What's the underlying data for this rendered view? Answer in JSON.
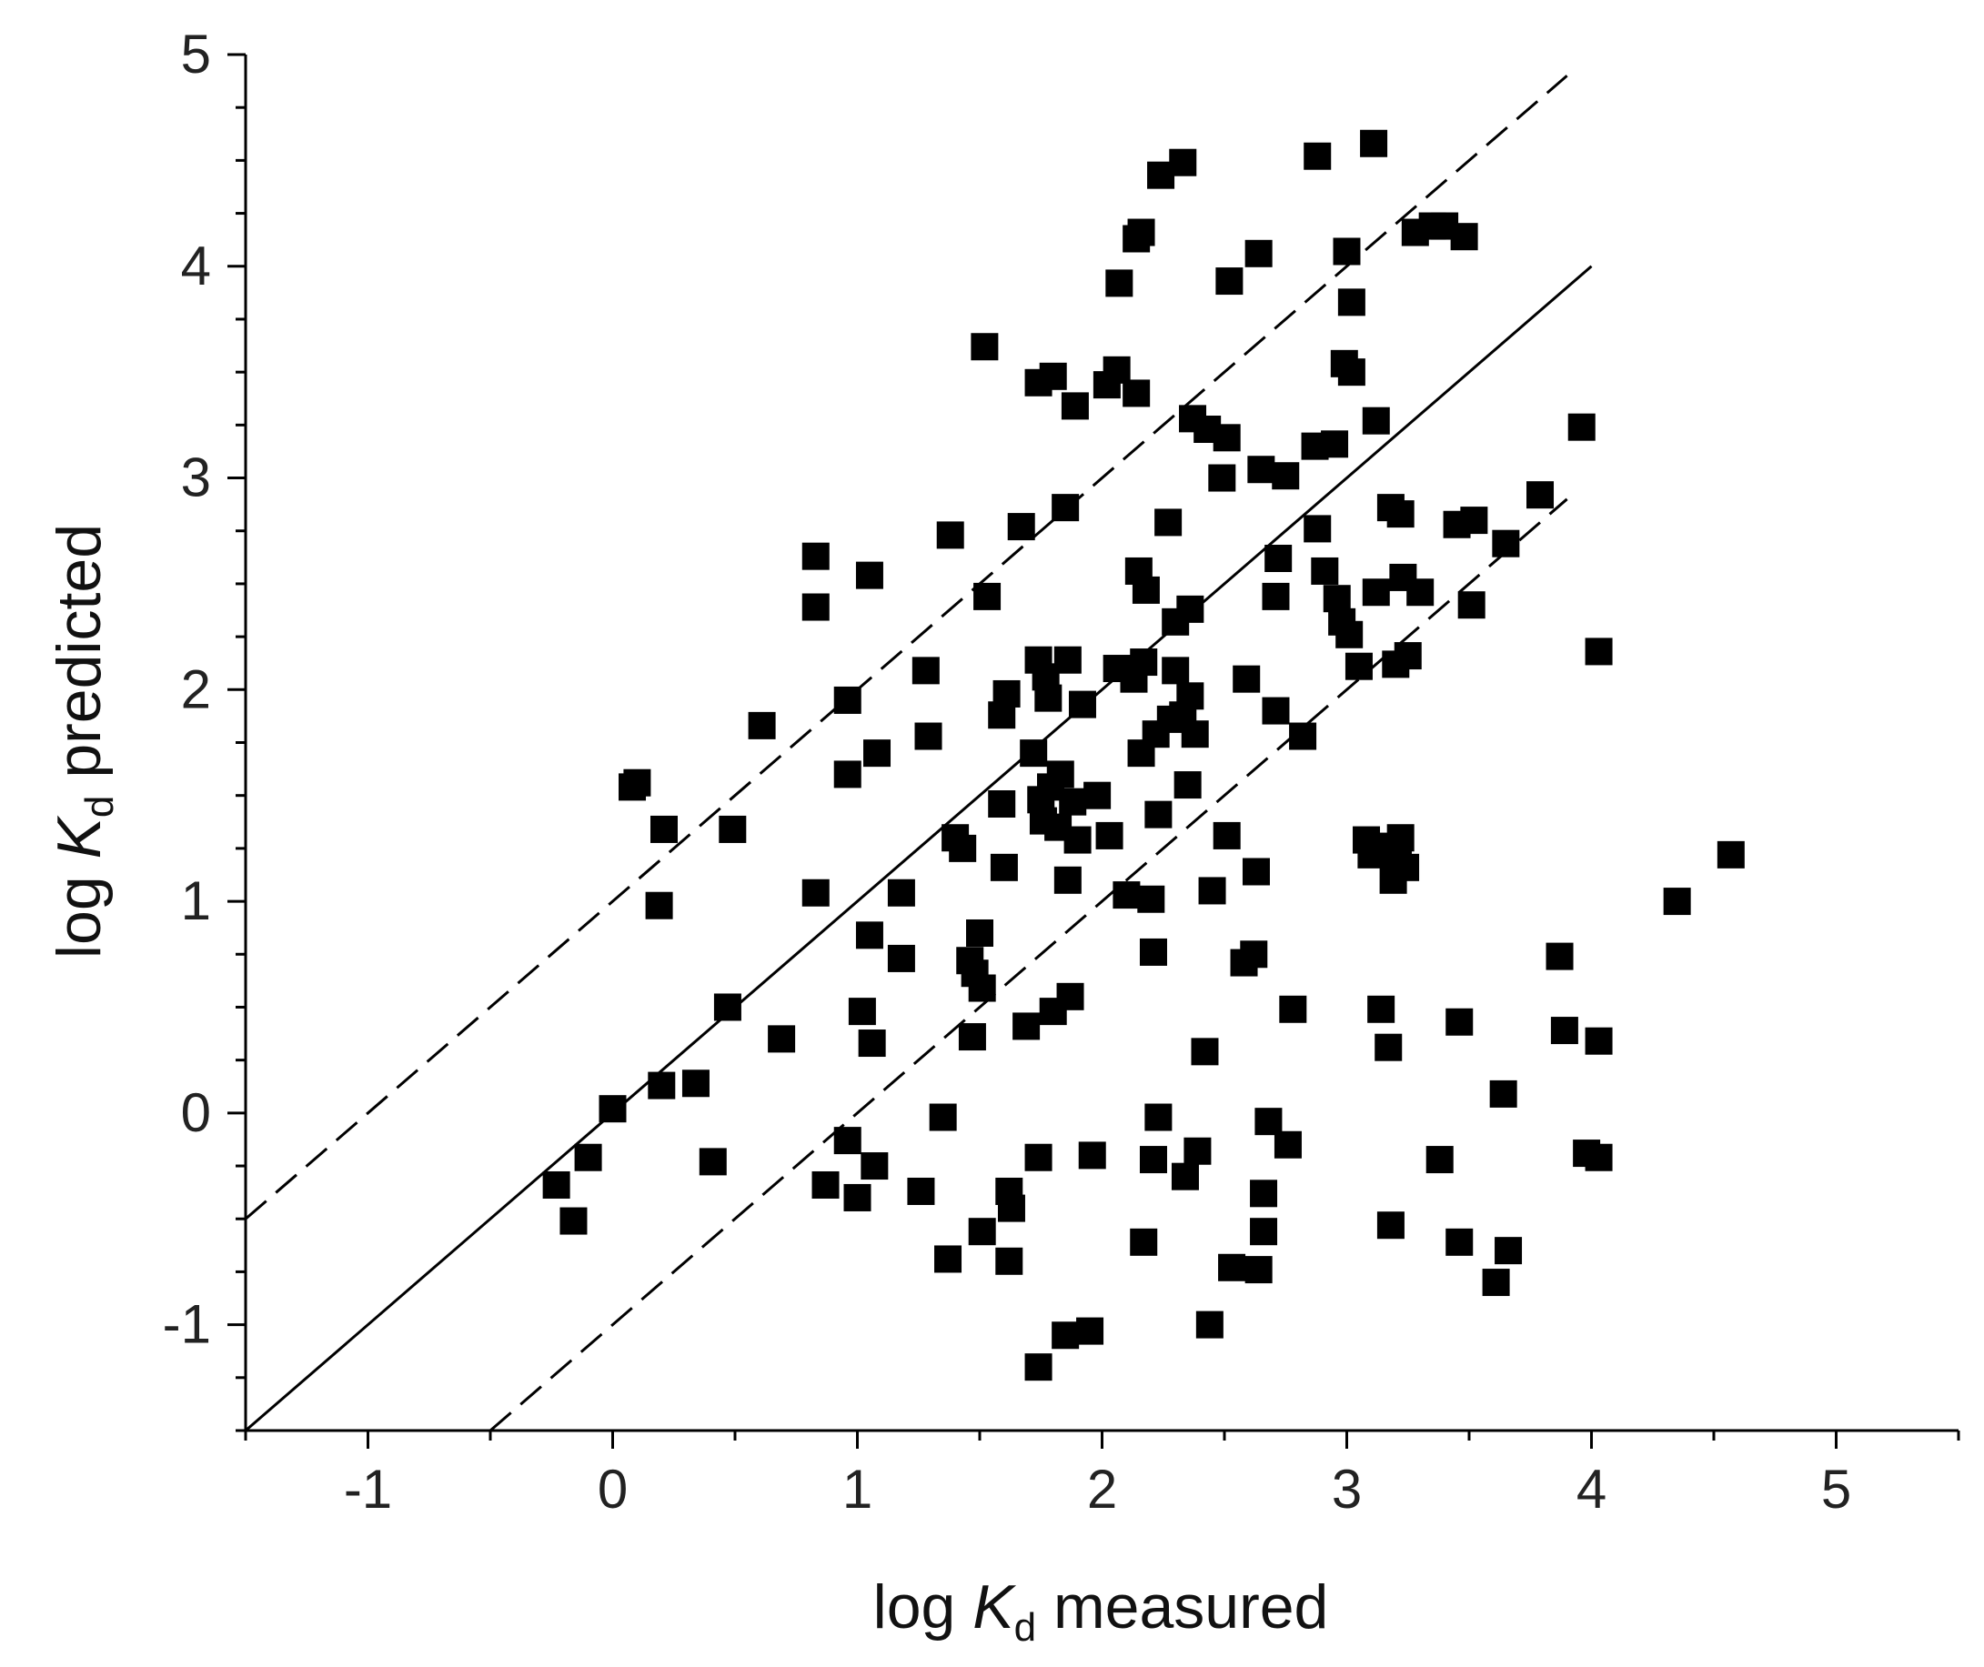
{
  "chart_data": {
    "type": "scatter",
    "xlabel": {
      "prefix": "log ",
      "symbol": "K",
      "subscript": "d",
      "suffix": " measured"
    },
    "ylabel": {
      "prefix": "log ",
      "symbol": "K",
      "subscript": "d",
      "suffix": " predicted"
    },
    "xlim": [
      -1.5,
      5.5
    ],
    "ylim": [
      -1.5,
      5.0
    ],
    "x_ticks": [
      -1,
      0,
      1,
      2,
      3,
      4,
      5
    ],
    "x_tick_labels": [
      "-1",
      "0",
      "1",
      "2",
      "3",
      "4",
      "5"
    ],
    "y_ticks": [
      -1,
      0,
      1,
      2,
      3,
      4,
      5
    ],
    "y_tick_labels": [
      "-1",
      "0",
      "1",
      "2",
      "3",
      "4",
      "5"
    ],
    "grid": false,
    "marker": "filled-square",
    "marker_color": "#000000",
    "reference_lines": [
      {
        "style": "solid",
        "slope": 1,
        "intercept": 0,
        "x_range": [
          -1.5,
          4.0
        ]
      },
      {
        "style": "dashed",
        "slope": 1,
        "intercept": 1,
        "x_range": [
          -1.5,
          3.9
        ]
      },
      {
        "style": "dashed",
        "slope": 1,
        "intercept": -1,
        "x_range": [
          -0.5,
          3.9
        ]
      }
    ],
    "points": [
      [
        -0.23,
        -0.34
      ],
      [
        -0.16,
        -0.51
      ],
      [
        -0.1,
        -0.21
      ],
      [
        0.0,
        0.02
      ],
      [
        0.08,
        1.54
      ],
      [
        0.1,
        1.56
      ],
      [
        0.19,
        0.98
      ],
      [
        0.2,
        0.13
      ],
      [
        0.21,
        1.34
      ],
      [
        0.34,
        0.14
      ],
      [
        0.41,
        -0.23
      ],
      [
        0.47,
        0.5
      ],
      [
        0.49,
        1.34
      ],
      [
        0.61,
        1.83
      ],
      [
        0.69,
        0.35
      ],
      [
        0.83,
        2.63
      ],
      [
        0.83,
        2.39
      ],
      [
        0.83,
        1.04
      ],
      [
        0.87,
        -0.34
      ],
      [
        0.96,
        1.95
      ],
      [
        0.96,
        1.6
      ],
      [
        0.96,
        -0.13
      ],
      [
        1.0,
        -0.4
      ],
      [
        1.02,
        0.48
      ],
      [
        1.05,
        0.84
      ],
      [
        1.05,
        2.54
      ],
      [
        1.06,
        0.33
      ],
      [
        1.07,
        -0.25
      ],
      [
        1.08,
        1.7
      ],
      [
        1.18,
        1.04
      ],
      [
        1.18,
        0.73
      ],
      [
        1.26,
        -0.37
      ],
      [
        1.28,
        2.09
      ],
      [
        1.29,
        1.78
      ],
      [
        1.35,
        -0.02
      ],
      [
        1.37,
        -0.69
      ],
      [
        1.38,
        2.73
      ],
      [
        1.4,
        1.3
      ],
      [
        1.43,
        1.25
      ],
      [
        1.46,
        0.72
      ],
      [
        1.47,
        0.36
      ],
      [
        1.48,
        0.66
      ],
      [
        1.5,
        0.85
      ],
      [
        1.51,
        -0.56
      ],
      [
        1.51,
        0.59
      ],
      [
        1.52,
        3.62
      ],
      [
        1.53,
        2.44
      ],
      [
        1.59,
        1.46
      ],
      [
        1.59,
        1.88
      ],
      [
        1.6,
        1.16
      ],
      [
        1.61,
        1.98
      ],
      [
        1.62,
        -0.37
      ],
      [
        1.62,
        -0.7
      ],
      [
        1.63,
        -0.45
      ],
      [
        1.67,
        2.77
      ],
      [
        1.69,
        0.41
      ],
      [
        1.72,
        1.7
      ],
      [
        1.74,
        -1.2
      ],
      [
        1.74,
        3.45
      ],
      [
        1.74,
        2.14
      ],
      [
        1.74,
        -0.21
      ],
      [
        1.75,
        1.48
      ],
      [
        1.76,
        1.38
      ],
      [
        1.77,
        2.06
      ],
      [
        1.78,
        1.96
      ],
      [
        1.79,
        1.54
      ],
      [
        1.8,
        3.48
      ],
      [
        1.8,
        0.48
      ],
      [
        1.82,
        1.35
      ],
      [
        1.83,
        1.6
      ],
      [
        1.85,
        -1.05
      ],
      [
        1.85,
        2.86
      ],
      [
        1.86,
        1.1
      ],
      [
        1.86,
        2.14
      ],
      [
        1.87,
        0.55
      ],
      [
        1.88,
        1.47
      ],
      [
        1.89,
        3.34
      ],
      [
        1.9,
        1.29
      ],
      [
        1.92,
        1.93
      ],
      [
        1.95,
        -1.03
      ],
      [
        1.96,
        -0.2
      ],
      [
        1.98,
        1.5
      ],
      [
        2.02,
        3.44
      ],
      [
        2.03,
        1.31
      ],
      [
        2.06,
        3.51
      ],
      [
        2.06,
        2.1
      ],
      [
        2.07,
        3.92
      ],
      [
        2.1,
        1.03
      ],
      [
        2.13,
        2.05
      ],
      [
        2.14,
        4.13
      ],
      [
        2.14,
        3.4
      ],
      [
        2.15,
        2.56
      ],
      [
        2.16,
        1.7
      ],
      [
        2.16,
        4.16
      ],
      [
        2.17,
        2.13
      ],
      [
        2.17,
        -0.61
      ],
      [
        2.18,
        2.47
      ],
      [
        2.2,
        1.01
      ],
      [
        2.21,
        0.76
      ],
      [
        2.21,
        -0.22
      ],
      [
        2.22,
        1.79
      ],
      [
        2.23,
        1.41
      ],
      [
        2.23,
        -0.02
      ],
      [
        2.24,
        4.43
      ],
      [
        2.27,
        2.79
      ],
      [
        2.28,
        1.86
      ],
      [
        2.3,
        2.09
      ],
      [
        2.3,
        2.32
      ],
      [
        2.33,
        1.88
      ],
      [
        2.33,
        4.49
      ],
      [
        2.34,
        -0.3
      ],
      [
        2.35,
        1.55
      ],
      [
        2.36,
        1.97
      ],
      [
        2.36,
        2.38
      ],
      [
        2.37,
        3.28
      ],
      [
        2.38,
        1.79
      ],
      [
        2.39,
        -0.18
      ],
      [
        2.42,
        0.29
      ],
      [
        2.43,
        3.23
      ],
      [
        2.44,
        -1.0
      ],
      [
        2.45,
        1.05
      ],
      [
        2.49,
        3.0
      ],
      [
        2.51,
        3.19
      ],
      [
        2.51,
        1.31
      ],
      [
        2.52,
        3.93
      ],
      [
        2.53,
        -0.73
      ],
      [
        2.58,
        0.71
      ],
      [
        2.59,
        2.05
      ],
      [
        2.62,
        0.75
      ],
      [
        2.63,
        1.14
      ],
      [
        2.64,
        -0.74
      ],
      [
        2.64,
        4.06
      ],
      [
        2.65,
        3.04
      ],
      [
        2.66,
        -0.56
      ],
      [
        2.66,
        -0.38
      ],
      [
        2.68,
        -0.04
      ],
      [
        2.71,
        1.9
      ],
      [
        2.71,
        2.44
      ],
      [
        2.72,
        2.62
      ],
      [
        2.75,
        3.01
      ],
      [
        2.76,
        -0.15
      ],
      [
        2.78,
        0.49
      ],
      [
        2.82,
        1.78
      ],
      [
        2.87,
        3.15
      ],
      [
        2.88,
        2.76
      ],
      [
        2.88,
        4.52
      ],
      [
        2.91,
        2.56
      ],
      [
        2.95,
        3.16
      ],
      [
        2.96,
        2.43
      ],
      [
        2.98,
        2.32
      ],
      [
        2.99,
        3.54
      ],
      [
        3.0,
        4.07
      ],
      [
        3.01,
        2.26
      ],
      [
        3.02,
        3.83
      ],
      [
        3.02,
        3.5
      ],
      [
        3.05,
        2.11
      ],
      [
        3.08,
        1.29
      ],
      [
        3.1,
        1.22
      ],
      [
        3.11,
        4.58
      ],
      [
        3.12,
        2.46
      ],
      [
        3.12,
        3.27
      ],
      [
        3.14,
        0.49
      ],
      [
        3.16,
        1.26
      ],
      [
        3.17,
        0.31
      ],
      [
        3.18,
        2.86
      ],
      [
        3.18,
        -0.53
      ],
      [
        3.19,
        1.1
      ],
      [
        3.2,
        2.12
      ],
      [
        3.21,
        1.22
      ],
      [
        3.22,
        2.83
      ],
      [
        3.22,
        1.3
      ],
      [
        3.23,
        2.53
      ],
      [
        3.24,
        1.16
      ],
      [
        3.25,
        2.16
      ],
      [
        3.28,
        4.16
      ],
      [
        3.3,
        2.46
      ],
      [
        3.35,
        4.19
      ],
      [
        3.38,
        -0.22
      ],
      [
        3.4,
        4.19
      ],
      [
        3.45,
        2.78
      ],
      [
        3.46,
        -0.61
      ],
      [
        3.46,
        0.43
      ],
      [
        3.48,
        4.14
      ],
      [
        3.51,
        2.4
      ],
      [
        3.52,
        2.8
      ],
      [
        3.61,
        -0.8
      ],
      [
        3.64,
        0.09
      ],
      [
        3.65,
        2.69
      ],
      [
        3.66,
        -0.65
      ],
      [
        3.79,
        2.92
      ],
      [
        3.87,
        0.74
      ],
      [
        3.89,
        0.39
      ],
      [
        3.96,
        3.24
      ],
      [
        3.98,
        -0.19
      ],
      [
        4.03,
        -0.21
      ],
      [
        4.03,
        2.18
      ],
      [
        4.03,
        0.34
      ],
      [
        4.35,
        1.0
      ],
      [
        4.57,
        1.22
      ]
    ]
  }
}
